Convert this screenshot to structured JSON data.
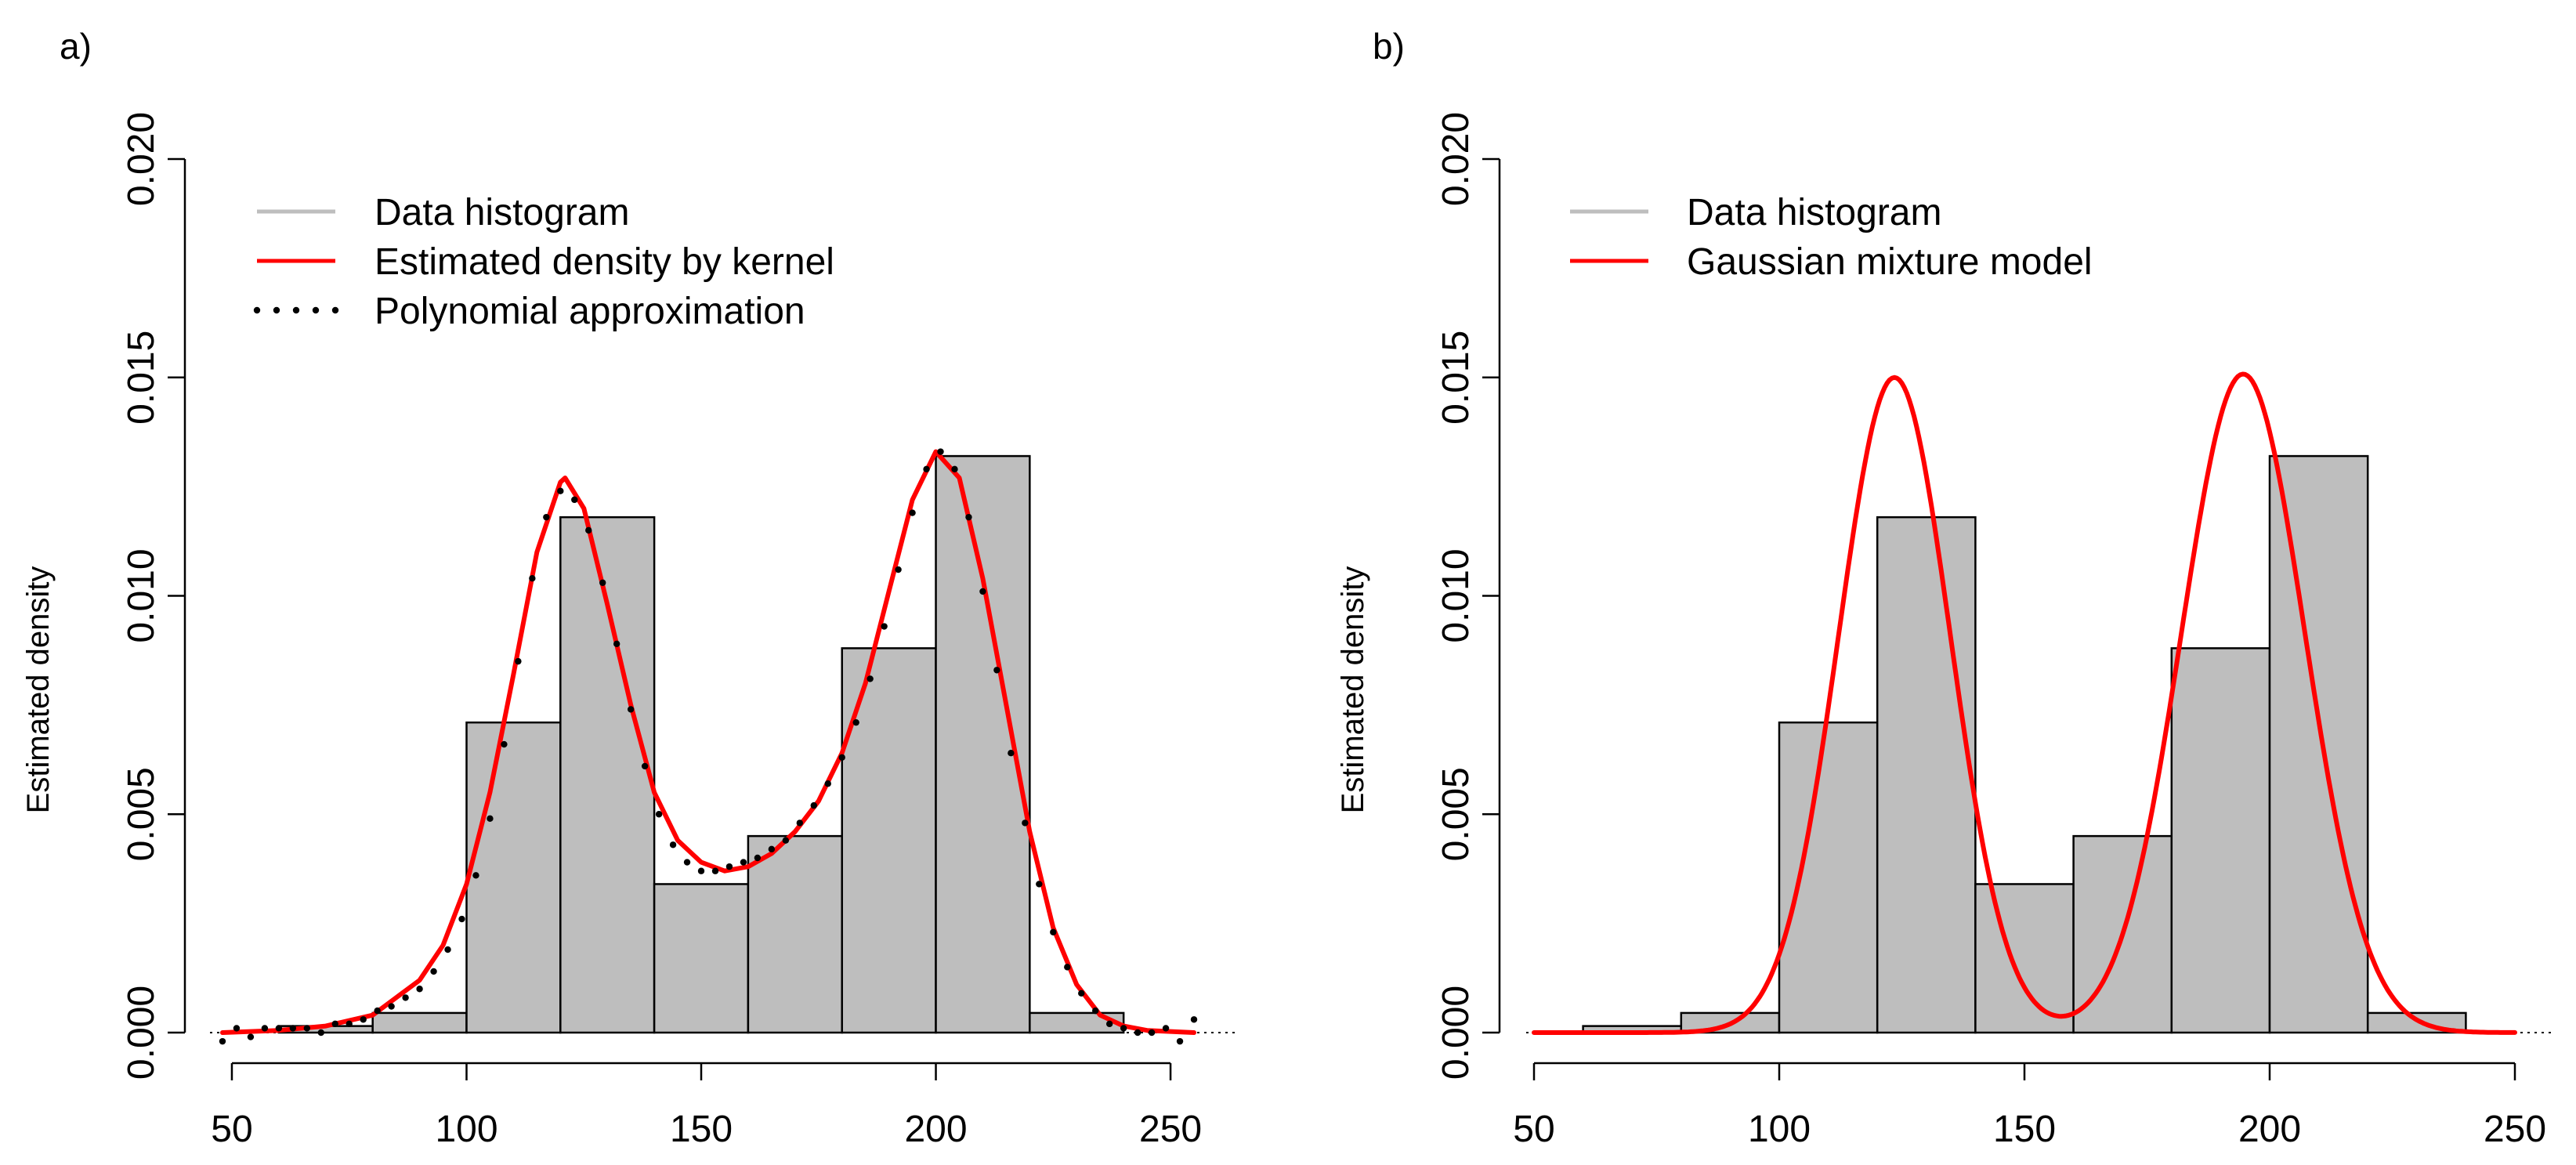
{
  "chart_data": [
    {
      "panel": "a)",
      "type": "bar",
      "title": "",
      "xlabel": "",
      "ylabel": "Estimated density",
      "xlim": [
        47,
        256
      ],
      "ylim": [
        0,
        0.02
      ],
      "xticks": [
        "50",
        "100",
        "150",
        "200",
        "250"
      ],
      "yticks": [
        "0.000",
        "0.005",
        "0.010",
        "0.015",
        "0.020"
      ],
      "histogram": {
        "name": "Data histogram",
        "color": "#bebebe",
        "bins": [
          [
            60,
            80
          ],
          [
            80,
            100
          ],
          [
            100,
            120
          ],
          [
            120,
            140
          ],
          [
            140,
            160
          ],
          [
            160,
            180
          ],
          [
            180,
            200
          ],
          [
            200,
            220
          ],
          [
            220,
            240
          ]
        ],
        "values": [
          0.00015,
          0.00045,
          0.0071,
          0.0118,
          0.0034,
          0.0045,
          0.0088,
          0.0132,
          0.00045
        ]
      },
      "series": [
        {
          "name": "Estimated density by kernel",
          "type": "line",
          "color": "#ff0000",
          "x": [
            48,
            60,
            70,
            80,
            90,
            95,
            100,
            105,
            110,
            115,
            120,
            121,
            125,
            130,
            135,
            140,
            145,
            150,
            155,
            160,
            165,
            170,
            175,
            180,
            185,
            190,
            195,
            200,
            205,
            210,
            215,
            220,
            225,
            230,
            235,
            240,
            245,
            255
          ],
          "y": [
            0.0,
            5e-05,
            0.00015,
            0.0004,
            0.0012,
            0.002,
            0.0034,
            0.0055,
            0.0082,
            0.011,
            0.0126,
            0.0127,
            0.012,
            0.0098,
            0.0075,
            0.0055,
            0.0044,
            0.0039,
            0.0037,
            0.0038,
            0.0041,
            0.0046,
            0.0053,
            0.0064,
            0.008,
            0.0101,
            0.0122,
            0.0133,
            0.0127,
            0.0104,
            0.0075,
            0.0046,
            0.0024,
            0.0011,
            0.0004,
            0.00015,
            5e-05,
            0.0
          ]
        },
        {
          "name": "Polynomial approximation",
          "type": "scatter",
          "color": "#000000",
          "x": [
            48,
            51,
            54,
            57,
            60,
            63,
            66,
            69,
            72,
            75,
            78,
            81,
            84,
            87,
            90,
            93,
            96,
            99,
            102,
            105,
            108,
            111,
            114,
            117,
            120,
            123,
            126,
            129,
            132,
            135,
            138,
            141,
            144,
            147,
            150,
            153,
            156,
            159,
            162,
            165,
            168,
            171,
            174,
            177,
            180,
            183,
            186,
            189,
            192,
            195,
            198,
            201,
            204,
            207,
            210,
            213,
            216,
            219,
            222,
            225,
            228,
            231,
            234,
            237,
            240,
            243,
            246,
            249,
            252,
            255
          ],
          "y": [
            -0.0002,
            0.0001,
            -0.0001,
            0.0001,
            0.0001,
            0.0001,
            0.0001,
            0.0,
            0.0002,
            0.0002,
            0.0003,
            0.0005,
            0.0006,
            0.0008,
            0.001,
            0.0014,
            0.0019,
            0.0026,
            0.0036,
            0.0049,
            0.0066,
            0.0085,
            0.0104,
            0.0118,
            0.0124,
            0.0122,
            0.0115,
            0.0103,
            0.0089,
            0.0074,
            0.0061,
            0.005,
            0.0043,
            0.0039,
            0.0037,
            0.0037,
            0.0038,
            0.0039,
            0.004,
            0.0042,
            0.0044,
            0.0048,
            0.0052,
            0.0057,
            0.0063,
            0.0071,
            0.0081,
            0.0093,
            0.0106,
            0.0119,
            0.0129,
            0.0133,
            0.0129,
            0.0118,
            0.0101,
            0.0083,
            0.0064,
            0.0048,
            0.0034,
            0.0023,
            0.0015,
            0.0009,
            0.0005,
            0.0002,
            0.0001,
            0.0,
            0.0,
            0.0001,
            -0.0002,
            0.0003
          ]
        }
      ],
      "legend": {
        "position": "top-left",
        "entries": [
          {
            "label": "Data histogram",
            "style": "line",
            "color": "#bebebe"
          },
          {
            "label": "Estimated density by kernel",
            "style": "line",
            "color": "#ff0000"
          },
          {
            "label": "Polynomial approximation",
            "style": "dots",
            "color": "#000000"
          }
        ]
      }
    },
    {
      "panel": "b)",
      "type": "bar",
      "title": "",
      "xlabel": "",
      "ylabel": "Estimated density",
      "xlim": [
        50,
        250
      ],
      "ylim": [
        0,
        0.02
      ],
      "xticks": [
        "50",
        "100",
        "150",
        "200",
        "250"
      ],
      "yticks": [
        "0.000",
        "0.005",
        "0.010",
        "0.015",
        "0.020"
      ],
      "histogram": {
        "name": "Data histogram",
        "color": "#bebebe",
        "bins": [
          [
            60,
            80
          ],
          [
            80,
            100
          ],
          [
            100,
            120
          ],
          [
            120,
            140
          ],
          [
            140,
            160
          ],
          [
            160,
            180
          ],
          [
            180,
            200
          ],
          [
            200,
            220
          ],
          [
            220,
            240
          ]
        ],
        "values": [
          0.00015,
          0.00045,
          0.0071,
          0.0118,
          0.0034,
          0.0045,
          0.0088,
          0.0132,
          0.00045
        ]
      },
      "series": [
        {
          "name": "Gaussian mixture model",
          "type": "line",
          "color": "#ff0000",
          "components": [
            {
              "weight": 0.4286,
              "mean": 123.5,
              "sd": 11.4
            },
            {
              "weight": 0.4762,
              "mean": 194.6,
              "sd": 12.6
            }
          ],
          "x_range": [
            50,
            250
          ]
        }
      ],
      "legend": {
        "position": "top-left",
        "entries": [
          {
            "label": "Data histogram",
            "style": "line",
            "color": "#bebebe"
          },
          {
            "label": "Gaussian mixture model",
            "style": "line",
            "color": "#ff0000"
          }
        ]
      }
    }
  ]
}
